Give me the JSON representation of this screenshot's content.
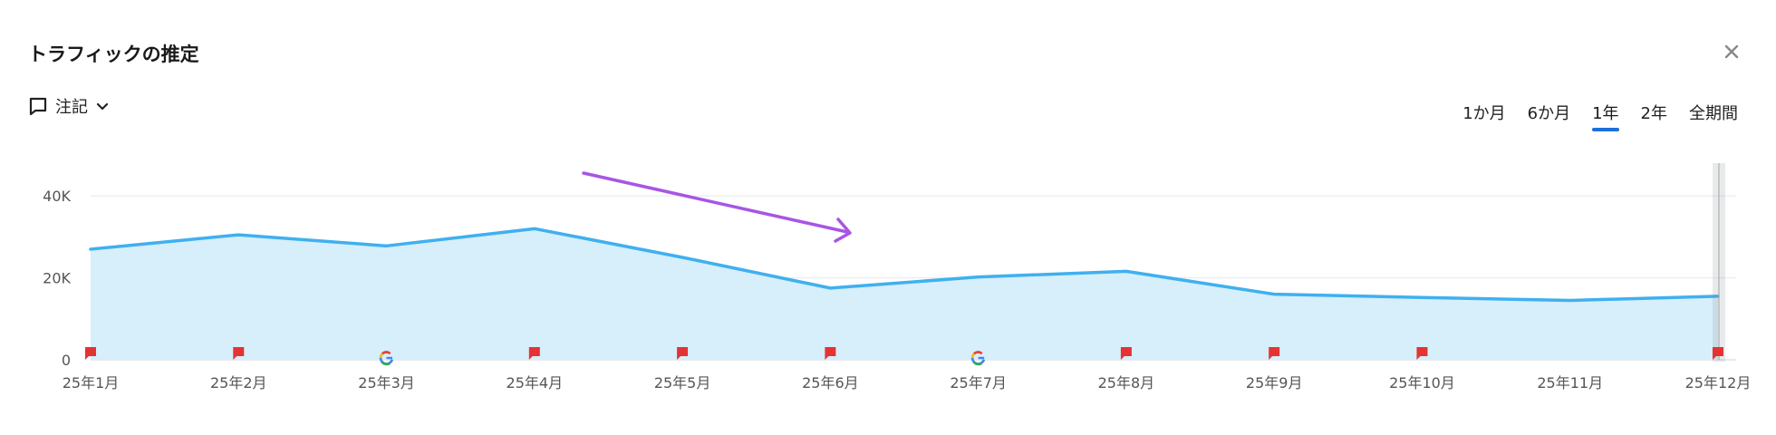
{
  "header": {
    "title": "トラフィックの推定",
    "close_icon": "close-icon"
  },
  "toolbar": {
    "notes_label": "注記",
    "notes_icon": "comment-icon",
    "dropdown_icon": "chevron-down-icon",
    "periods": [
      {
        "label": "1か月",
        "active": false
      },
      {
        "label": "6か月",
        "active": false
      },
      {
        "label": "1年",
        "active": true
      },
      {
        "label": "2年",
        "active": false
      },
      {
        "label": "全期間",
        "active": false
      }
    ]
  },
  "colors": {
    "line": "#3fb0ef",
    "area": "#d7eefb",
    "accent_tab": "#1e6fd9",
    "note_flag": "#e43333",
    "annotation_arrow": "#a855e6"
  },
  "chart_data": {
    "type": "area",
    "title": "",
    "xlabel": "",
    "ylabel": "",
    "categories": [
      "25年1月",
      "25年2月",
      "25年3月",
      "25年4月",
      "25年5月",
      "25年6月",
      "25年7月",
      "25年8月",
      "25年9月",
      "25年10月",
      "25年11月",
      "25年12月"
    ],
    "series": [
      {
        "values": [
          27000,
          30500,
          27800,
          32000,
          25000,
          17500,
          20200,
          21600,
          16000,
          15200,
          14500,
          15500
        ]
      }
    ],
    "ylim": [
      0,
      48000
    ],
    "yticks": [
      {
        "value": 0,
        "label": "0"
      },
      {
        "value": 20000,
        "label": "20K"
      },
      {
        "value": 40000,
        "label": "40K"
      }
    ],
    "grid": true,
    "markers": [
      "flag",
      "flag",
      "google",
      "flag",
      "flag",
      "flag",
      "google",
      "flag",
      "flag",
      "flag",
      "none",
      "flag"
    ]
  }
}
